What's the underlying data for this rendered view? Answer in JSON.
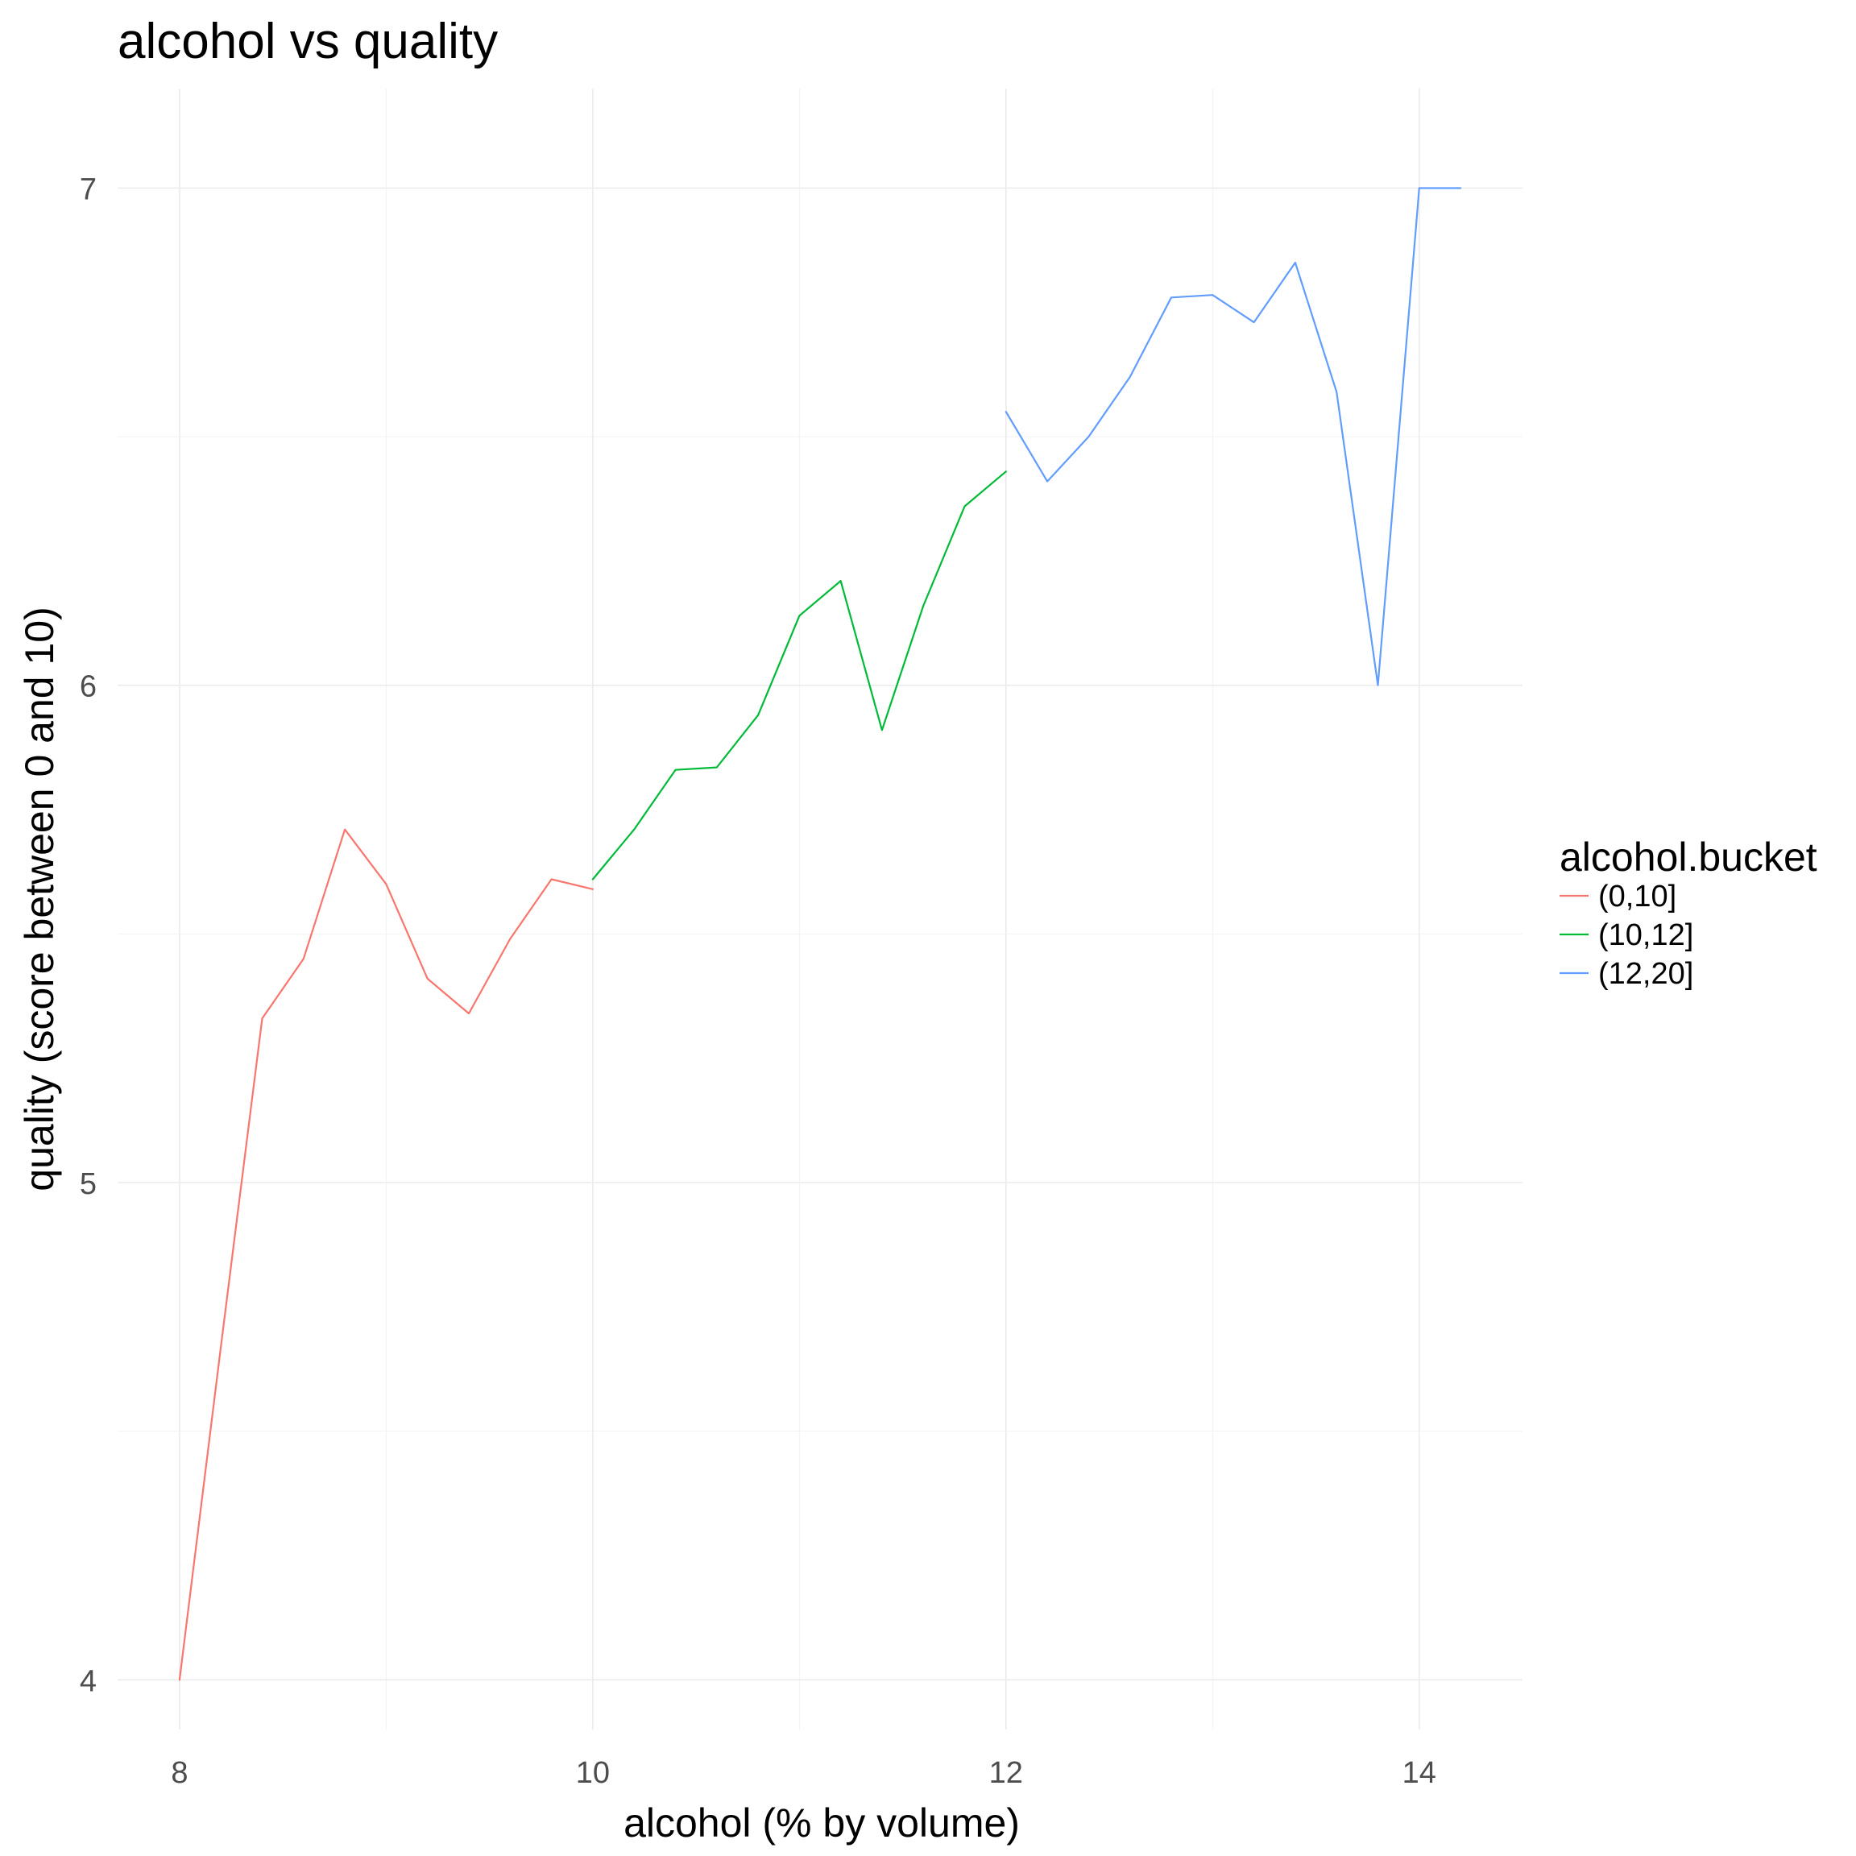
{
  "chart_data": {
    "type": "line",
    "title": "alcohol vs quality",
    "xlabel": "alcohol (% by volume)",
    "ylabel": "quality (score between 0 and 10)",
    "xlim": [
      7.7,
      14.5
    ],
    "ylim": [
      3.9,
      7.2
    ],
    "x_ticks": [
      8,
      10,
      12,
      14
    ],
    "y_ticks": [
      4,
      5,
      6,
      7
    ],
    "grid": true,
    "legend": {
      "title": "alcohol.bucket",
      "position": "right"
    },
    "series": [
      {
        "name": "(0,10]",
        "color": "#F8766D",
        "points": [
          [
            8.0,
            4.0
          ],
          [
            8.2,
            4.67
          ],
          [
            8.4,
            5.33
          ],
          [
            8.6,
            5.45
          ],
          [
            8.8,
            5.71
          ],
          [
            9.0,
            5.6
          ],
          [
            9.2,
            5.41
          ],
          [
            9.4,
            5.34
          ],
          [
            9.6,
            5.49
          ],
          [
            9.8,
            5.61
          ],
          [
            10.0,
            5.59
          ]
        ]
      },
      {
        "name": "(10,12]",
        "color": "#00BA38",
        "points": [
          [
            10.0,
            5.61
          ],
          [
            10.2,
            5.71
          ],
          [
            10.4,
            5.83
          ],
          [
            10.6,
            5.835
          ],
          [
            10.8,
            5.94
          ],
          [
            11.0,
            6.14
          ],
          [
            11.2,
            6.21
          ],
          [
            11.4,
            5.91
          ],
          [
            11.6,
            6.16
          ],
          [
            11.8,
            6.36
          ],
          [
            12.0,
            6.43
          ]
        ]
      },
      {
        "name": "(12,20]",
        "color": "#619CFF",
        "points": [
          [
            12.0,
            6.55
          ],
          [
            12.2,
            6.41
          ],
          [
            12.4,
            6.5
          ],
          [
            12.6,
            6.62
          ],
          [
            12.8,
            6.78
          ],
          [
            13.0,
            6.785
          ],
          [
            13.2,
            6.73
          ],
          [
            13.4,
            6.85
          ],
          [
            13.6,
            6.59
          ],
          [
            13.8,
            6.0
          ],
          [
            14.0,
            7.0
          ],
          [
            14.2,
            7.0
          ]
        ]
      }
    ]
  }
}
